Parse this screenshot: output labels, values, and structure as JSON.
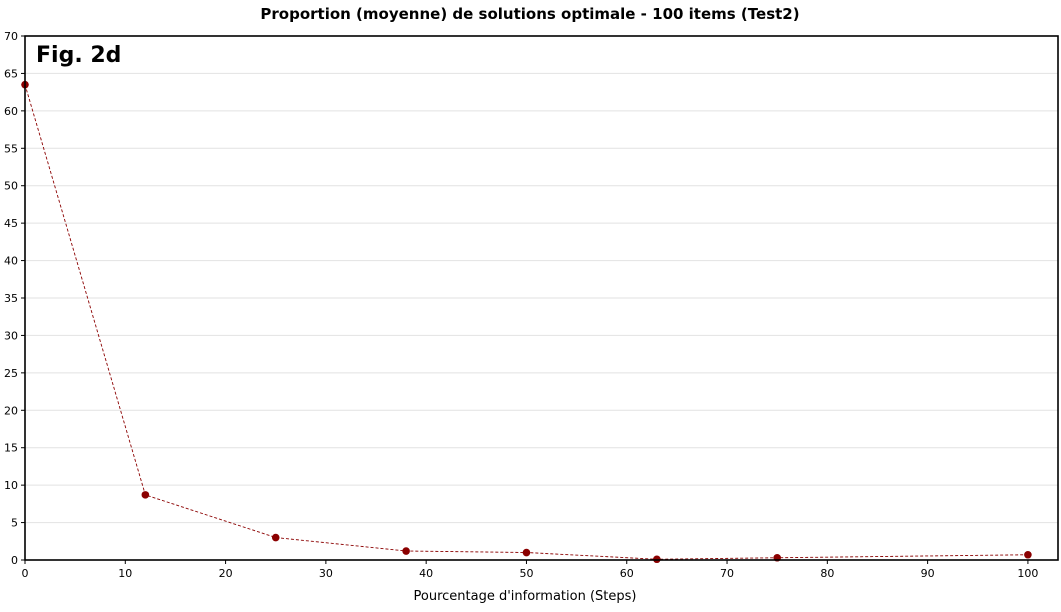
{
  "chart_data": {
    "type": "line",
    "title": "Proportion (moyenne) de solutions optimale - 100 items (Test2)",
    "figure_label": "Fig. 2d",
    "xlabel": "Pourcentage d'information (Steps)",
    "ylabel": "",
    "xlim": [
      0,
      103
    ],
    "ylim": [
      0,
      70
    ],
    "xticks": [
      0,
      10,
      20,
      30,
      40,
      50,
      60,
      70,
      80,
      90,
      100
    ],
    "yticks": [
      0,
      5,
      10,
      15,
      20,
      25,
      30,
      35,
      40,
      45,
      50,
      55,
      60,
      65,
      70
    ],
    "grid": true,
    "legend": "none",
    "series": [
      {
        "name": "",
        "color": "#8b0000",
        "line_style": "dashed",
        "x": [
          0,
          12,
          25,
          38,
          50,
          63,
          75,
          100
        ],
        "y": [
          63.5,
          8.7,
          3.0,
          1.2,
          1.0,
          0.1,
          0.3,
          0.7
        ]
      }
    ]
  }
}
